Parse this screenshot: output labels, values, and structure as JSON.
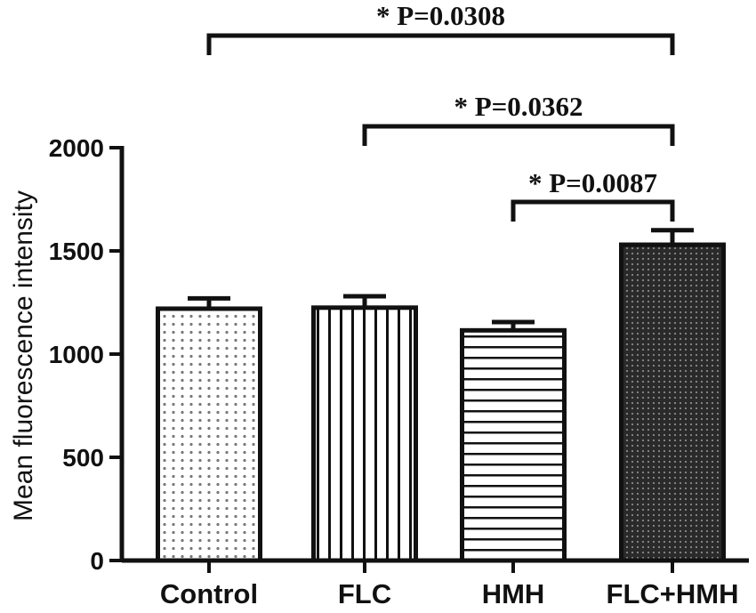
{
  "chart_data": {
    "type": "bar",
    "categories": [
      "Control",
      "FLC",
      "HMH",
      "FLC+HMH"
    ],
    "values": [
      1220,
      1225,
      1115,
      1530
    ],
    "errors": [
      50,
      55,
      40,
      70
    ],
    "ylabel": "Mean fluorescence intensity",
    "xlabel": "",
    "ylim": [
      0,
      2000
    ],
    "yticks": [
      0,
      500,
      1000,
      1500,
      2000
    ],
    "patterns": [
      "dots",
      "vertical-lines",
      "horizontal-lines",
      "dense-crosshatch"
    ],
    "comparisons": [
      {
        "from": 0,
        "to": 3,
        "label": "* P=0.0308"
      },
      {
        "from": 1,
        "to": 3,
        "label": "* P=0.0362"
      },
      {
        "from": 2,
        "to": 3,
        "label": "* P=0.0087"
      }
    ],
    "grid": false,
    "legend": "none"
  }
}
